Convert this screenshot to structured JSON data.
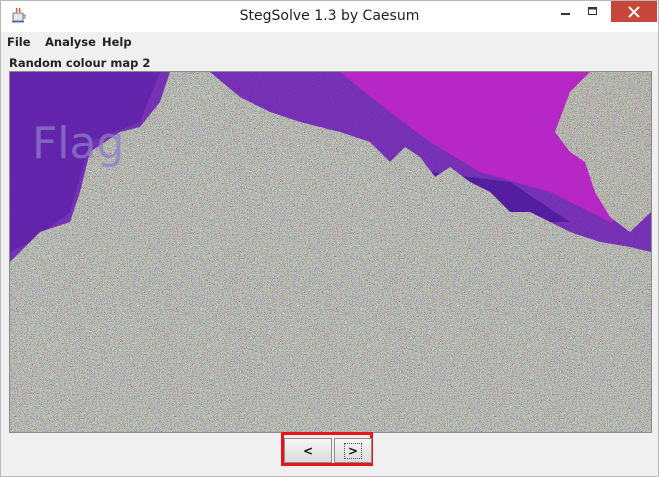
{
  "window": {
    "title": "StegSolve 1.3 by Caesum",
    "close_color": "#c7483b"
  },
  "menu": {
    "items": [
      {
        "label": "File"
      },
      {
        "label": "Analyse"
      },
      {
        "label": "Help"
      }
    ]
  },
  "viewer": {
    "mode_label": "Random colour map 2",
    "watermark_text": "Flag",
    "colors": {
      "background": "#6d2fb0",
      "magenta": "#c226c9",
      "deep_purple": "#5b1fa8",
      "noise": "#7d8a6a"
    }
  },
  "navigation": {
    "prev_label": "<",
    "next_label": ">",
    "highlight_color": "#e8141c"
  },
  "icons": {
    "app": "java-cup-icon",
    "minimize": "minimize-icon",
    "maximize": "maximize-icon",
    "close": "close-icon"
  }
}
